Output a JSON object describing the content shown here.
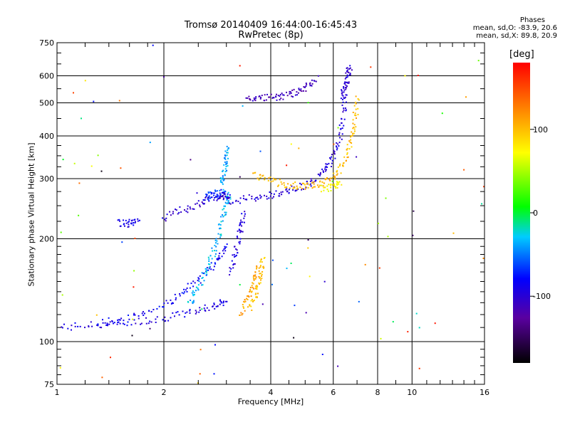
{
  "chart_data": {
    "type": "scatter",
    "title": "Tromsø 20140409 16:44:00-16:45:43",
    "subtitle": "RwPretec (8p)",
    "xlabel": "Frequency [MHz]",
    "ylabel": "Stationary phase Virtual Height [km]",
    "x_scale": "log",
    "y_scale": "log",
    "xlim": [
      1,
      16
    ],
    "ylim": [
      75,
      750
    ],
    "x_ticks": [
      "1",
      "2",
      "4",
      "6",
      "8",
      "10",
      "16"
    ],
    "y_ticks": [
      "75",
      "100",
      "200",
      "300",
      "400",
      "500",
      "600",
      "750"
    ],
    "grid": true,
    "phase_stats": {
      "title": "Phases",
      "o_line": "mean, sd,O: -83.9, 20.6",
      "x_line": "mean, sd,X:  89.8, 20.9"
    },
    "colorbar": {
      "unit": "[deg]",
      "range": [
        -180,
        180
      ],
      "ticks": [
        "100",
        "0",
        "-100"
      ],
      "tick_values": [
        100,
        0,
        -100
      ]
    },
    "traces": [
      {
        "name": "",
        "phase": -95,
        "x": [
          1.03,
          1.3,
          1.6,
          2.0,
          2.4,
          2.8,
          3.0
        ],
        "y": [
          110,
          112,
          114,
          117,
          122,
          128,
          131
        ]
      },
      {
        "name": "",
        "phase": -85,
        "x": [
          1.3,
          1.6,
          2.0,
          2.3,
          2.6,
          2.85,
          3.0
        ],
        "y": [
          113,
          117,
          128,
          140,
          158,
          175,
          190
        ]
      },
      {
        "name": "",
        "phase": -35,
        "x": [
          2.35,
          2.5,
          2.65,
          2.8,
          2.9,
          3.0,
          3.05
        ],
        "y": [
          128,
          145,
          165,
          190,
          220,
          250,
          268
        ]
      },
      {
        "name": "",
        "phase": -40,
        "x": [
          2.9,
          2.95,
          3.0,
          3.02
        ],
        "y": [
          280,
          310,
          340,
          370
        ]
      },
      {
        "name": "",
        "phase": -98,
        "x": [
          3.1,
          3.2,
          3.3,
          3.35
        ],
        "y": [
          160,
          185,
          215,
          240
        ]
      },
      {
        "name": "",
        "phase": -100,
        "x": [
          3.0,
          3.5,
          4.0,
          4.5,
          5.0,
          5.5,
          5.9,
          6.2,
          6.4,
          6.5
        ],
        "y": [
          258,
          262,
          268,
          276,
          288,
          305,
          335,
          380,
          450,
          540
        ]
      },
      {
        "name": "",
        "phase": -70,
        "x": [
          2.6,
          2.75,
          2.9,
          3.05
        ],
        "y": [
          265,
          270,
          272,
          270
        ]
      },
      {
        "name": "",
        "phase": -105,
        "x": [
          2.0,
          2.3,
          2.6,
          2.9,
          3.0
        ],
        "y": [
          230,
          245,
          258,
          265,
          268
        ]
      },
      {
        "name": "",
        "phase": -90,
        "x": [
          1.5,
          1.6,
          1.7
        ],
        "y": [
          222,
          222,
          223
        ]
      },
      {
        "name": "",
        "phase": -105,
        "x": [
          6.35,
          6.5,
          6.6,
          6.7
        ],
        "y": [
          520,
          560,
          600,
          640
        ]
      },
      {
        "name": "",
        "phase": -115,
        "x": [
          3.4,
          3.8,
          4.2,
          4.6,
          5.0,
          5.4
        ],
        "y": [
          510,
          515,
          520,
          530,
          555,
          590
        ]
      },
      {
        "name": "",
        "phase": 100,
        "x": [
          3.6,
          4.0,
          4.5,
          5.0,
          5.5,
          6.0,
          6.4,
          6.7,
          6.9,
          7.0
        ],
        "y": [
          310,
          295,
          287,
          285,
          288,
          300,
          330,
          380,
          440,
          520
        ]
      },
      {
        "name": "",
        "phase": 75,
        "x": [
          5.6,
          6.0,
          6.3
        ],
        "y": [
          280,
          283,
          290
        ]
      },
      {
        "name": "",
        "phase": 110,
        "x": [
          3.3,
          3.45,
          3.6,
          3.7
        ],
        "y": [
          120,
          135,
          150,
          165
        ]
      },
      {
        "name": "",
        "phase": 95,
        "x": [
          3.5,
          3.65,
          3.75,
          3.8
        ],
        "y": [
          125,
          140,
          160,
          175
        ]
      }
    ]
  }
}
